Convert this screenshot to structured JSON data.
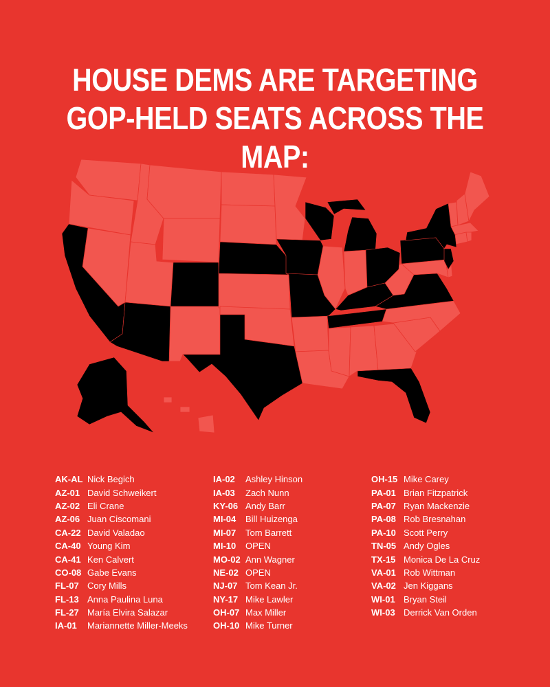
{
  "title": {
    "line1": "HOUSE DEMS ARE TARGETING",
    "line2": "GOP-HELD SEATS ACROSS THE MAP:"
  },
  "colors": {
    "background": "#e8352e",
    "targeted_state": "#000000",
    "other_state": "#f2564f",
    "text": "#ffffff"
  },
  "map": {
    "targeted_states": [
      "AK",
      "AZ",
      "CA",
      "CO",
      "FL",
      "IA",
      "KY",
      "MI",
      "MO",
      "NE",
      "NJ",
      "NY",
      "OH",
      "PA",
      "TN",
      "TX",
      "VA",
      "WI"
    ]
  },
  "legend": {
    "columns": [
      [
        {
          "code": "AK-AL",
          "name": "Nick Begich"
        },
        {
          "code": "AZ-01",
          "name": "David Schweikert"
        },
        {
          "code": "AZ-02",
          "name": "Eli Crane"
        },
        {
          "code": "AZ-06",
          "name": "Juan Ciscomani"
        },
        {
          "code": "CA-22",
          "name": "David Valadao"
        },
        {
          "code": "CA-40",
          "name": "Young Kim"
        },
        {
          "code": "CA-41",
          "name": "Ken Calvert"
        },
        {
          "code": "CO-08",
          "name": "Gabe Evans"
        },
        {
          "code": "FL-07",
          "name": "Cory Mills"
        },
        {
          "code": "FL-13",
          "name": "Anna Paulina Luna"
        },
        {
          "code": "FL-27",
          "name": "María Elvira Salazar"
        },
        {
          "code": "IA-01",
          "name": "Mariannette Miller-Meeks"
        }
      ],
      [
        {
          "code": "IA-02",
          "name": "Ashley Hinson"
        },
        {
          "code": "IA-03",
          "name": "Zach Nunn"
        },
        {
          "code": "KY-06",
          "name": "Andy Barr"
        },
        {
          "code": "MI-04",
          "name": "Bill Huizenga"
        },
        {
          "code": "MI-07",
          "name": "Tom Barrett"
        },
        {
          "code": "MI-10",
          "name": "OPEN"
        },
        {
          "code": "MO-02",
          "name": "Ann Wagner"
        },
        {
          "code": "NE-02",
          "name": "OPEN"
        },
        {
          "code": "NJ-07",
          "name": "Tom Kean Jr."
        },
        {
          "code": "NY-17",
          "name": "Mike Lawler"
        },
        {
          "code": "OH-07",
          "name": "Max Miller"
        },
        {
          "code": "OH-10",
          "name": "Mike Turner"
        }
      ],
      [
        {
          "code": "OH-15",
          "name": "Mike Carey"
        },
        {
          "code": "PA-01",
          "name": "Brian Fitzpatrick"
        },
        {
          "code": "PA-07",
          "name": "Ryan Mackenzie"
        },
        {
          "code": "PA-08",
          "name": "Rob Bresnahan"
        },
        {
          "code": "PA-10",
          "name": "Scott Perry"
        },
        {
          "code": "TN-05",
          "name": "Andy Ogles"
        },
        {
          "code": "TX-15",
          "name": "Monica De La Cruz"
        },
        {
          "code": "VA-01",
          "name": "Rob Wittman"
        },
        {
          "code": "VA-02",
          "name": "Jen Kiggans"
        },
        {
          "code": "WI-01",
          "name": "Bryan Steil"
        },
        {
          "code": "WI-03",
          "name": "Derrick Van Orden"
        }
      ]
    ]
  }
}
